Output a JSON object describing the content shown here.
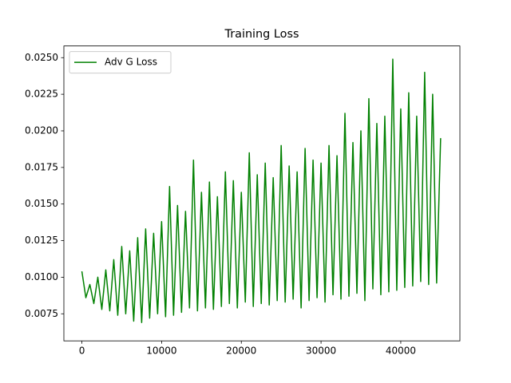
{
  "chart_data": {
    "type": "line",
    "title": "Training Loss",
    "x": [
      0,
      500,
      1000,
      1500,
      2000,
      2500,
      3000,
      3500,
      4000,
      4500,
      5000,
      5500,
      6000,
      6500,
      7000,
      7500,
      8000,
      8500,
      9000,
      9500,
      10000,
      10500,
      11000,
      11500,
      12000,
      12500,
      13000,
      13500,
      14000,
      14500,
      15000,
      15500,
      16000,
      16500,
      17000,
      17500,
      18000,
      18500,
      19000,
      19500,
      20000,
      20500,
      21000,
      21500,
      22000,
      22500,
      23000,
      23500,
      24000,
      24500,
      25000,
      25500,
      26000,
      26500,
      27000,
      27500,
      28000,
      28500,
      29000,
      29500,
      30000,
      30500,
      31000,
      31500,
      32000,
      32500,
      33000,
      33500,
      34000,
      34500,
      35000,
      35500,
      36000,
      36500,
      37000,
      37500,
      38000,
      38500,
      39000,
      39500,
      40000,
      40500,
      41000,
      41500,
      42000,
      42500,
      43000,
      43500,
      44000,
      44500,
      45000
    ],
    "series": [
      {
        "name": "Adv G Loss",
        "color": "#008000",
        "values": [
          0.0104,
          0.0086,
          0.0095,
          0.0082,
          0.01,
          0.0078,
          0.0105,
          0.0077,
          0.0112,
          0.0074,
          0.0121,
          0.0075,
          0.0118,
          0.007,
          0.0127,
          0.0069,
          0.0133,
          0.0072,
          0.013,
          0.0075,
          0.0138,
          0.0073,
          0.0162,
          0.0074,
          0.0149,
          0.0076,
          0.0145,
          0.0079,
          0.018,
          0.0077,
          0.0158,
          0.0079,
          0.0165,
          0.0078,
          0.0155,
          0.008,
          0.0172,
          0.0082,
          0.0166,
          0.0079,
          0.0158,
          0.0083,
          0.0185,
          0.008,
          0.017,
          0.0082,
          0.0178,
          0.0081,
          0.0168,
          0.0084,
          0.019,
          0.0083,
          0.0176,
          0.0085,
          0.0172,
          0.0079,
          0.0188,
          0.0084,
          0.018,
          0.0086,
          0.0178,
          0.0083,
          0.019,
          0.0088,
          0.0183,
          0.0085,
          0.0212,
          0.0087,
          0.0192,
          0.0089,
          0.02,
          0.0084,
          0.0222,
          0.0092,
          0.0205,
          0.0088,
          0.021,
          0.009,
          0.0249,
          0.0091,
          0.0215,
          0.0093,
          0.0226,
          0.0094,
          0.021,
          0.0097,
          0.024,
          0.0095,
          0.0225,
          0.0096,
          0.0195
        ]
      }
    ],
    "xlim": [
      -2258,
      47418
    ],
    "xticks": [
      0,
      10000,
      20000,
      30000,
      40000
    ],
    "ylim": [
      0.00565,
      0.0258
    ],
    "yticks": [
      {
        "value": 0.0075,
        "label": "0.0075"
      },
      {
        "value": 0.01,
        "label": "0.0100"
      },
      {
        "value": 0.0125,
        "label": "0.0125"
      },
      {
        "value": 0.015,
        "label": "0.0150"
      },
      {
        "value": 0.0175,
        "label": "0.0175"
      },
      {
        "value": 0.02,
        "label": "0.0200"
      },
      {
        "value": 0.0225,
        "label": "0.0225"
      },
      {
        "value": 0.025,
        "label": "0.0250"
      }
    ],
    "grid": false,
    "legend": "upper-left"
  }
}
